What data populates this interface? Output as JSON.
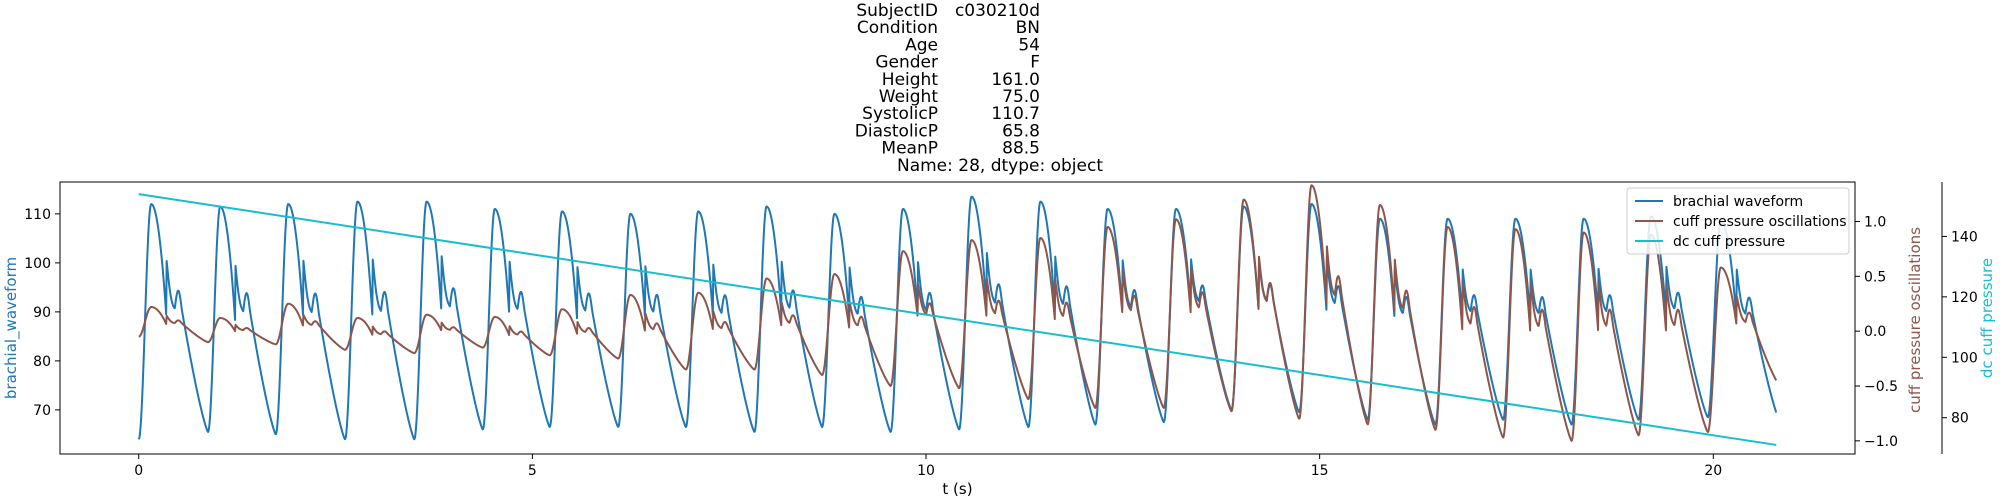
{
  "title": {
    "rows": [
      {
        "key": "SubjectID",
        "value": "c030210d"
      },
      {
        "key": "Condition",
        "value": "BN"
      },
      {
        "key": "Age",
        "value": "54"
      },
      {
        "key": "Gender",
        "value": "F"
      },
      {
        "key": "Height",
        "value": "161.0"
      },
      {
        "key": "Weight",
        "value": "75.0"
      },
      {
        "key": "SystolicP",
        "value": "110.7"
      },
      {
        "key": "DiastolicP",
        "value": "65.8"
      },
      {
        "key": "MeanP",
        "value": "88.5"
      }
    ],
    "footer": "Name: 28, dtype: object"
  },
  "chart_data": {
    "type": "line",
    "xlabel": "t (s)",
    "xlim": [
      -1.0,
      21.8
    ],
    "x_ticks": [
      0,
      5,
      10,
      15,
      20
    ],
    "duration_s": 20.8,
    "axes": [
      {
        "id": "left",
        "label": "brachial_waveform",
        "color": "#1f77b4",
        "ylim": [
          61.0,
          116.5
        ],
        "ticks": [
          70,
          80,
          90,
          100,
          110
        ]
      },
      {
        "id": "right1",
        "label": "cuff pressure oscillations",
        "color": "#8c564b",
        "ylim": [
          -1.12,
          1.36
        ],
        "ticks": [
          -1.0,
          -0.5,
          0.0,
          0.5,
          1.0
        ],
        "tick_format": "1dp"
      },
      {
        "id": "right2",
        "label": "dc cuff pressure",
        "color": "#17becf",
        "ylim": [
          68,
          158
        ],
        "ticks": [
          80,
          100,
          120,
          140
        ]
      }
    ],
    "series": [
      {
        "name": "brachial waveform",
        "axis": "left",
        "color": "#1f77b4",
        "model": "periodic_pulse",
        "beat_onsets_s": [
          0.0,
          0.88,
          1.74,
          2.62,
          3.5,
          4.37,
          5.22,
          6.09,
          6.95,
          7.82,
          8.68,
          9.55,
          10.42,
          11.3,
          12.15,
          13.02,
          13.88,
          14.74,
          15.61,
          16.47,
          17.33,
          18.2,
          19.05,
          19.93
        ],
        "beat_peaks": [
          112,
          111.5,
          112,
          112.5,
          112.5,
          111,
          110.5,
          110,
          110.5,
          111.5,
          110,
          111,
          113.5,
          112.5,
          111,
          111,
          111.5,
          112,
          109,
          109,
          109,
          109,
          109.5,
          108.5
        ],
        "beat_troughs": [
          64,
          65.5,
          65,
          64,
          64,
          66,
          66.5,
          66.5,
          66.5,
          65.5,
          66.5,
          65.5,
          66,
          66.5,
          67,
          67.5,
          70,
          69.5,
          68,
          67,
          68,
          67,
          68,
          68.5
        ],
        "end_value": 67.5
      },
      {
        "name": "cuff pressure oscillations",
        "axis": "right1",
        "color": "#8c564b",
        "model": "periodic_pulse_on_baseline",
        "start_value": -0.05,
        "beat_peaks": [
          0.22,
          0.12,
          0.25,
          0.12,
          0.15,
          0.13,
          0.2,
          0.33,
          0.35,
          0.48,
          0.52,
          0.73,
          0.83,
          0.85,
          0.95,
          1.02,
          1.2,
          1.33,
          1.15,
          0.95,
          0.93,
          0.9,
          0.88,
          0.58
        ],
        "beat_troughs": [
          -0.02,
          -0.1,
          -0.12,
          -0.17,
          -0.2,
          -0.15,
          -0.22,
          -0.25,
          -0.35,
          -0.35,
          -0.4,
          -0.5,
          -0.52,
          -0.62,
          -0.7,
          -0.7,
          -0.73,
          -0.8,
          -0.85,
          -0.9,
          -0.97,
          -1.0,
          -0.95,
          -0.92
        ],
        "end_value": -0.5
      },
      {
        "name": "dc cuff pressure",
        "axis": "right2",
        "color": "#17becf",
        "model": "linear",
        "x": [
          0,
          20.8
        ],
        "values": [
          154,
          71
        ]
      }
    ],
    "legend": {
      "placement": "top-right",
      "entries": [
        "brachial waveform",
        "cuff pressure oscillations",
        "dc cuff pressure"
      ]
    },
    "grid": false
  }
}
